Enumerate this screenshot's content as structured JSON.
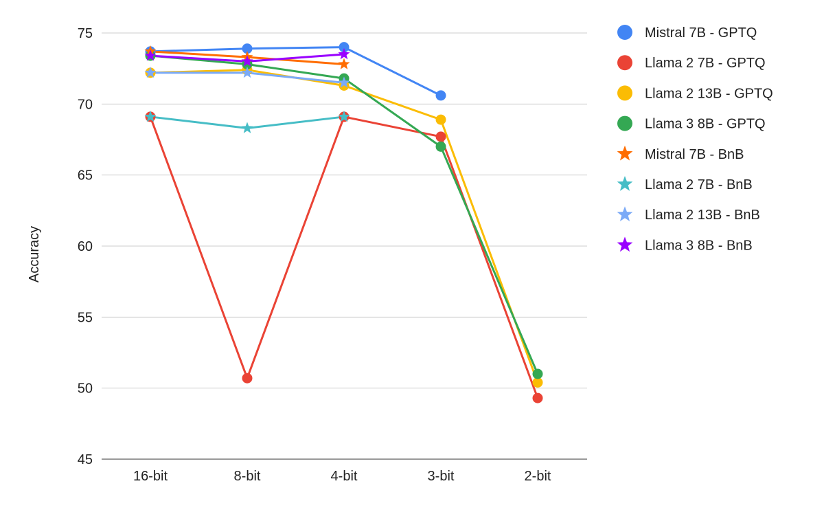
{
  "chart_data": {
    "type": "line",
    "title": "",
    "xlabel": "",
    "ylabel": "Accuracy",
    "categories": [
      "16-bit",
      "8-bit",
      "4-bit",
      "3-bit",
      "2-bit"
    ],
    "ylim": [
      45,
      75
    ],
    "yticks": [
      "45",
      "50",
      "55",
      "60",
      "65",
      "70",
      "75"
    ],
    "grid": "horizontal",
    "legend_position": "right",
    "series": [
      {
        "name": "Mistral 7B - GPTQ",
        "marker": "circle",
        "color": "#4285f4",
        "values": [
          73.7,
          73.9,
          74.0,
          70.6,
          null
        ]
      },
      {
        "name": "Llama 2 7B - GPTQ",
        "marker": "circle",
        "color": "#ea4335",
        "values": [
          69.1,
          50.7,
          69.1,
          67.7,
          49.3
        ]
      },
      {
        "name": "Llama 2 13B - GPTQ",
        "marker": "circle",
        "color": "#fbbc04",
        "values": [
          72.2,
          72.4,
          71.3,
          68.9,
          50.4
        ]
      },
      {
        "name": "Llama 3 8B - GPTQ",
        "marker": "circle",
        "color": "#34a853",
        "values": [
          73.4,
          72.8,
          71.8,
          67.0,
          51.0
        ]
      },
      {
        "name": "Mistral 7B - BnB",
        "marker": "star",
        "color": "#ff6d01",
        "values": [
          73.7,
          73.3,
          72.8,
          null,
          null
        ]
      },
      {
        "name": "Llama 2 7B - BnB",
        "marker": "star",
        "color": "#46bdc6",
        "values": [
          69.1,
          68.3,
          69.1,
          null,
          null
        ]
      },
      {
        "name": "Llama 2 13B - BnB",
        "marker": "star",
        "color": "#7baaf7",
        "values": [
          72.2,
          72.2,
          71.5,
          null,
          null
        ]
      },
      {
        "name": "Llama 3 8B - BnB",
        "marker": "star",
        "color": "#9900ff",
        "values": [
          73.4,
          73.0,
          73.5,
          null,
          null
        ]
      }
    ]
  }
}
